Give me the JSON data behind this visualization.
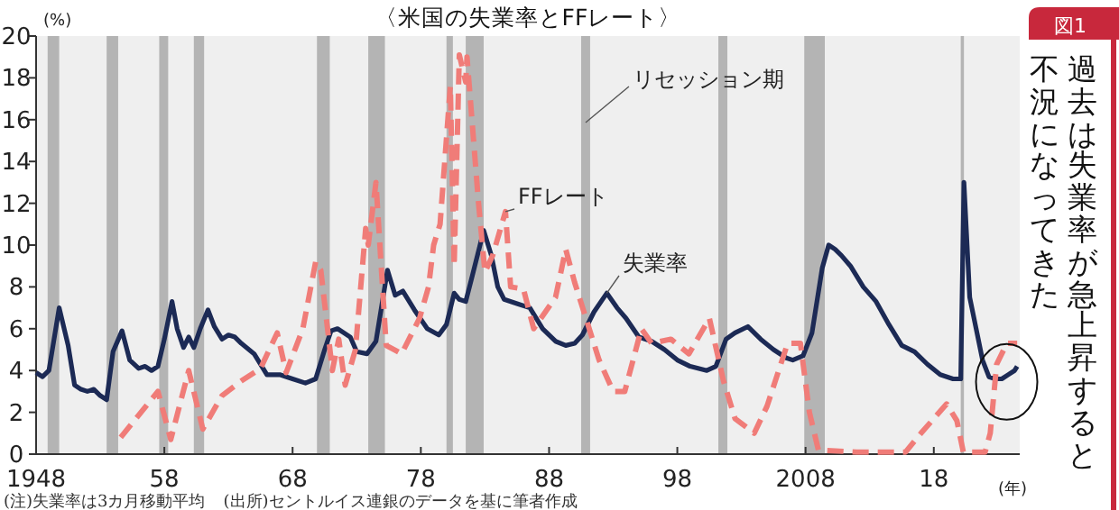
{
  "chart_data": {
    "type": "line",
    "title": "〈米国の失業率とFFレート〉",
    "xlabel": "(年)",
    "ylabel": "(%)",
    "annotations": [
      "図1",
      "過去は失業率が急上昇すると",
      "不況になってきた",
      "(注)失業率は3カ月移動平均",
      "(出所)セントルイス連銀のデータを基に筆者作成"
    ],
    "xlim": [
      1948,
      2024.7
    ],
    "ylim": [
      0,
      20
    ],
    "xticks": [
      1948,
      {
        "value": 1958,
        "label": "58"
      },
      {
        "value": 1968,
        "label": "68"
      },
      {
        "value": 1978,
        "label": "78"
      },
      {
        "value": 1988,
        "label": "88"
      },
      {
        "value": 1998,
        "label": "98"
      },
      2008,
      {
        "value": 2018,
        "label": "18"
      }
    ],
    "yticks": [
      0,
      2,
      4,
      6,
      8,
      10,
      12,
      14,
      16,
      18,
      20
    ],
    "bands": [
      {
        "axis": "x",
        "from": 1948.9,
        "to": 1949.8,
        "color": "#b4b4b4"
      },
      {
        "axis": "x",
        "from": 1953.5,
        "to": 1954.4,
        "color": "#b4b4b4"
      },
      {
        "axis": "x",
        "from": 1957.6,
        "to": 1958.3,
        "color": "#b4b4b4"
      },
      {
        "axis": "x",
        "from": 1960.3,
        "to": 1961.1,
        "color": "#b4b4b4"
      },
      {
        "axis": "x",
        "from": 1969.9,
        "to": 1970.9,
        "color": "#b4b4b4"
      },
      {
        "axis": "x",
        "from": 1973.9,
        "to": 1975.2,
        "color": "#b4b4b4"
      },
      {
        "axis": "x",
        "from": 1980.0,
        "to": 1980.5,
        "color": "#b4b4b4"
      },
      {
        "axis": "x",
        "from": 1981.5,
        "to": 1982.9,
        "color": "#b4b4b4"
      },
      {
        "axis": "x",
        "from": 1990.5,
        "to": 1991.2,
        "color": "#b4b4b4",
        "label": "リセッション期"
      },
      {
        "axis": "x",
        "from": 2001.2,
        "to": 2001.9,
        "color": "#b4b4b4"
      },
      {
        "axis": "x",
        "from": 2007.9,
        "to": 2009.5,
        "color": "#b4b4b4"
      },
      {
        "axis": "x",
        "from": 2020.1,
        "to": 2020.35,
        "color": "#b4b4b4"
      }
    ],
    "series": [
      {
        "name": "失業率",
        "color": "#1c2a55",
        "line_style": "solid",
        "x": [
          1948.0,
          1948.5,
          1949.0,
          1949.8,
          1950.5,
          1951.0,
          1951.5,
          1952.0,
          1952.5,
          1953.0,
          1953.5,
          1954.0,
          1954.7,
          1955.3,
          1956.0,
          1956.5,
          1957.0,
          1957.5,
          1958.0,
          1958.6,
          1959.0,
          1959.5,
          1959.9,
          1960.3,
          1960.8,
          1961.4,
          1961.9,
          1962.5,
          1963.0,
          1963.5,
          1964.0,
          1965.0,
          1966.0,
          1967.0,
          1968.0,
          1969.0,
          1969.8,
          1970.5,
          1971.0,
          1971.5,
          1972.0,
          1972.5,
          1973.0,
          1973.8,
          1974.5,
          1975.4,
          1976.0,
          1976.6,
          1977.5,
          1978.5,
          1979.4,
          1980.0,
          1980.6,
          1981.0,
          1981.5,
          1982.0,
          1982.9,
          1983.5,
          1984.0,
          1984.5,
          1985.5,
          1986.5,
          1987.5,
          1988.5,
          1989.3,
          1990.0,
          1990.6,
          1991.5,
          1992.5,
          1993.3,
          1994.0,
          1995.0,
          1996.0,
          1997.0,
          1998.0,
          1999.0,
          2000.3,
          2001.0,
          2001.8,
          2002.5,
          2003.5,
          2004.5,
          2005.5,
          2006.5,
          2007.0,
          2007.8,
          2008.5,
          2009.3,
          2009.8,
          2010.3,
          2010.8,
          2011.5,
          2012.5,
          2013.5,
          2014.5,
          2015.5,
          2016.5,
          2017.5,
          2018.5,
          2019.5,
          2020.1,
          2020.35,
          2020.8,
          2021.3,
          2021.8,
          2022.3,
          2022.8,
          2023.3,
          2023.8,
          2024.3,
          2024.5
        ],
        "values": [
          3.9,
          3.7,
          4.0,
          7.0,
          5.2,
          3.3,
          3.1,
          3.0,
          3.1,
          2.8,
          2.6,
          4.9,
          5.9,
          4.5,
          4.1,
          4.2,
          4.0,
          4.2,
          5.5,
          7.3,
          6.0,
          5.1,
          5.6,
          5.1,
          6.0,
          6.9,
          6.1,
          5.5,
          5.7,
          5.6,
          5.3,
          4.8,
          3.8,
          3.8,
          3.6,
          3.4,
          3.6,
          5.0,
          5.9,
          6.0,
          5.8,
          5.6,
          4.9,
          4.8,
          5.4,
          8.8,
          7.6,
          7.8,
          6.9,
          6.0,
          5.7,
          6.2,
          7.7,
          7.4,
          7.3,
          8.5,
          10.7,
          9.5,
          8.0,
          7.4,
          7.2,
          7.0,
          6.0,
          5.4,
          5.2,
          5.3,
          5.7,
          6.8,
          7.7,
          7.0,
          6.5,
          5.6,
          5.4,
          5.0,
          4.5,
          4.2,
          4.0,
          4.2,
          5.5,
          5.8,
          6.1,
          5.5,
          5.0,
          4.6,
          4.5,
          4.7,
          5.8,
          8.9,
          10.0,
          9.8,
          9.5,
          9.0,
          8.0,
          7.3,
          6.2,
          5.2,
          4.9,
          4.3,
          3.8,
          3.6,
          3.6,
          13.0,
          7.5,
          6.0,
          4.5,
          3.7,
          3.6,
          3.6,
          3.8,
          4.0,
          4.2
        ]
      },
      {
        "name": "FFレート",
        "color": "#f07c78",
        "line_style": "dashed",
        "x": [
          1954.6,
          1957.5,
          1958.5,
          1959.9,
          1961.0,
          1962.5,
          1964.0,
          1965.5,
          1966.8,
          1967.5,
          1968.8,
          1969.8,
          1970.2,
          1971.1,
          1971.6,
          1972.1,
          1972.9,
          1973.7,
          1973.9,
          1974.5,
          1975.3,
          1976.5,
          1977.9,
          1978.6,
          1979.0,
          1979.5,
          1980.3,
          1980.6,
          1981.0,
          1981.5,
          1981.6,
          1982.5,
          1983.0,
          1983.6,
          1984.6,
          1985.0,
          1986.0,
          1986.8,
          1987.6,
          1988.5,
          1989.3,
          1990.0,
          1991.9,
          1993.0,
          1993.9,
          1995.2,
          1996.0,
          1997.5,
          1998.9,
          2000.5,
          2001.6,
          2002.5,
          2004.0,
          2005.0,
          2006.6,
          2007.6,
          2008.3,
          2009.0,
          2012.0,
          2015.8,
          2017.0,
          2019.0,
          2019.8,
          2020.3,
          2022.0,
          2022.4,
          2022.9,
          2023.7,
          2024.5
        ],
        "values": [
          0.8,
          3.0,
          0.7,
          4.0,
          1.2,
          2.8,
          3.5,
          4.1,
          5.8,
          3.9,
          6.0,
          9.2,
          8.8,
          4.0,
          5.5,
          3.3,
          5.0,
          10.8,
          10.0,
          13.0,
          5.2,
          4.8,
          6.5,
          8.0,
          10.0,
          11.0,
          17.6,
          9.0,
          19.1,
          17.8,
          19.0,
          12.0,
          8.7,
          9.5,
          11.6,
          8.0,
          7.9,
          6.0,
          6.7,
          7.5,
          9.8,
          8.2,
          4.5,
          3.0,
          3.0,
          6.0,
          5.3,
          5.5,
          4.8,
          6.5,
          3.5,
          1.7,
          1.0,
          2.3,
          5.3,
          5.3,
          2.0,
          0.2,
          0.1,
          0.1,
          1.0,
          2.4,
          1.6,
          0.1,
          0.1,
          1.0,
          4.3,
          5.3,
          5.3
        ]
      }
    ]
  }
}
